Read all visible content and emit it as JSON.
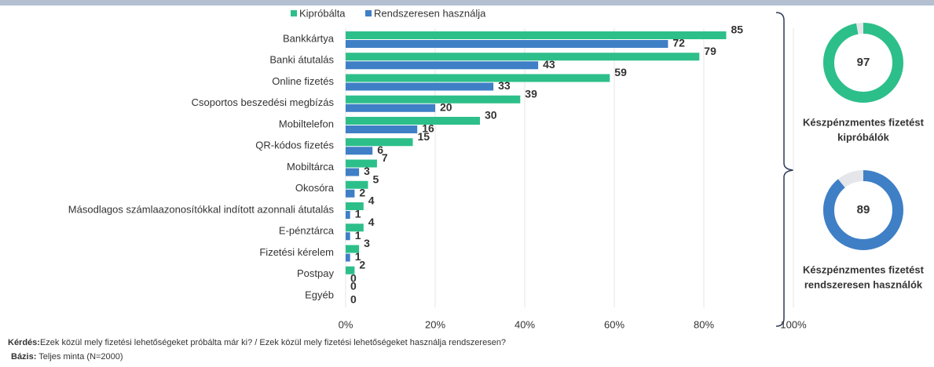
{
  "chart_data": [
    {
      "type": "bar",
      "categories": [
        "Bankkártya",
        "Banki átutalás",
        "Online fizetés",
        "Csoportos beszedési megbízás",
        "Mobiltelefon",
        "QR-kódos fizetés",
        "Mobiltárca",
        "Okosóra",
        "Másodlagos számlaazonosítókkal indított azonnali átutalás",
        "E-pénztárca",
        "Fizetési kérelem",
        "Postpay",
        "Egyéb"
      ],
      "series": [
        {
          "name": "Kipróbálta",
          "color": "#2dbf8a",
          "values": [
            85,
            79,
            59,
            39,
            30,
            15,
            7,
            5,
            4,
            4,
            3,
            2,
            0
          ]
        },
        {
          "name": "Rendszeresen használja",
          "color": "#3f7fc6",
          "values": [
            72,
            43,
            33,
            20,
            16,
            6,
            3,
            2,
            1,
            1,
            1,
            0,
            0
          ]
        }
      ],
      "xlim": [
        0,
        100
      ],
      "xticks": [
        {
          "value": 0,
          "label": "0%"
        },
        {
          "value": 20,
          "label": "20%"
        },
        {
          "value": 40,
          "label": "40%"
        },
        {
          "value": 60,
          "label": "60%"
        },
        {
          "value": 80,
          "label": "80%"
        },
        {
          "value": 100,
          "label": "100%"
        }
      ],
      "grid": true
    },
    {
      "type": "donut",
      "max": 100,
      "values": [
        97,
        89
      ],
      "colors": [
        "#2dbf8a",
        "#3f7fc6"
      ],
      "labels": [
        [
          "Készpénzmentes fizetést",
          "kipróbálók"
        ],
        [
          "Készpénzmentes fizetést",
          "rendszeresen használók"
        ]
      ]
    }
  ],
  "footer": {
    "question_label": "Kérdés:",
    "question": "Ezek közül mely fizetési lehetőségeket próbálta már ki? / Ezek közül mely fizetési lehetőségeket használja rendszeresen?",
    "base_label": "Bázis:",
    "base": "Teljes minta (N=2000)"
  }
}
